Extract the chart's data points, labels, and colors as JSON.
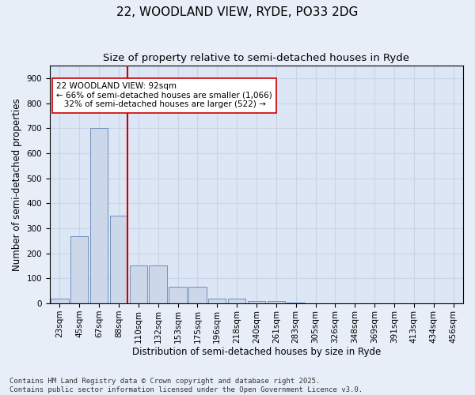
{
  "title": "22, WOODLAND VIEW, RYDE, PO33 2DG",
  "subtitle": "Size of property relative to semi-detached houses in Ryde",
  "xlabel": "Distribution of semi-detached houses by size in Ryde",
  "ylabel": "Number of semi-detached properties",
  "categories": [
    "23sqm",
    "45sqm",
    "67sqm",
    "88sqm",
    "110sqm",
    "132sqm",
    "153sqm",
    "175sqm",
    "196sqm",
    "218sqm",
    "240sqm",
    "261sqm",
    "283sqm",
    "305sqm",
    "326sqm",
    "348sqm",
    "369sqm",
    "391sqm",
    "413sqm",
    "434sqm",
    "456sqm"
  ],
  "values": [
    18,
    270,
    700,
    350,
    152,
    152,
    68,
    68,
    20,
    20,
    10,
    10,
    5,
    0,
    0,
    0,
    0,
    0,
    0,
    0,
    0
  ],
  "bar_color": "#ccd8ea",
  "bar_edge_color": "#7090bb",
  "vline_x_index": 3,
  "vline_color": "#cc0000",
  "annotation_text": "22 WOODLAND VIEW: 92sqm\n← 66% of semi-detached houses are smaller (1,066)\n   32% of semi-detached houses are larger (522) →",
  "annotation_box_color": "#ffffff",
  "annotation_box_edge": "#cc0000",
  "ylim": [
    0,
    950
  ],
  "yticks": [
    0,
    100,
    200,
    300,
    400,
    500,
    600,
    700,
    800,
    900
  ],
  "grid_color": "#c8d4e8",
  "bg_color": "#dce6f5",
  "fig_bg_color": "#e8eef8",
  "footer": "Contains HM Land Registry data © Crown copyright and database right 2025.\nContains public sector information licensed under the Open Government Licence v3.0.",
  "title_fontsize": 11,
  "subtitle_fontsize": 9.5,
  "axis_label_fontsize": 8.5,
  "tick_fontsize": 7.5,
  "footer_fontsize": 6.5
}
